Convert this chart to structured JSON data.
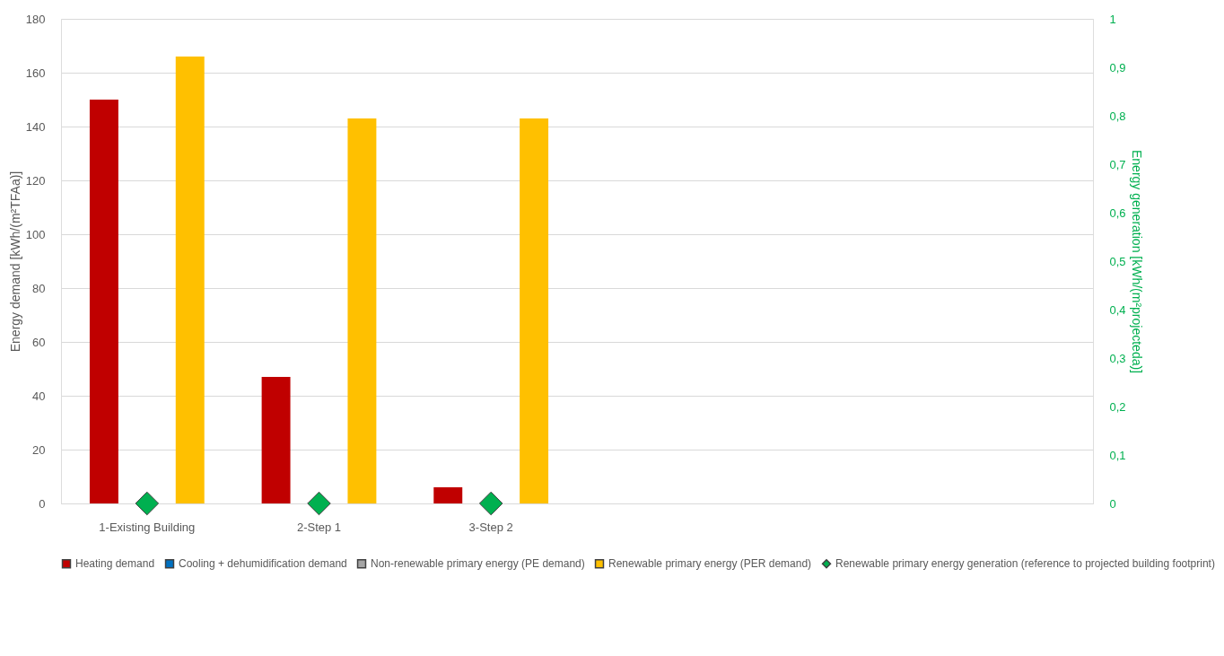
{
  "chart_data": {
    "type": "bar",
    "categories": [
      "1-Existing Building",
      "2-Step 1",
      "3-Step 2",
      null,
      null,
      null
    ],
    "ylabel": "Energy demand [kWh/(m²TFAa)]",
    "y2label": "Energy generation [kWh/(m²projecteda)]",
    "ylim": [
      0,
      180
    ],
    "yticks": [
      0,
      20,
      40,
      60,
      80,
      100,
      120,
      140,
      160,
      180
    ],
    "y2lim": [
      0,
      1
    ],
    "y2ticks": [
      0,
      {
        "value": 0.1,
        "label": "0,1"
      },
      {
        "value": 0.2,
        "label": "0,2"
      },
      {
        "value": 0.3,
        "label": "0,3"
      },
      {
        "value": 0.4,
        "label": "0,4"
      },
      {
        "value": 0.5,
        "label": "0,5"
      },
      {
        "value": 0.6,
        "label": "0,6"
      },
      {
        "value": 0.7,
        "label": "0,7"
      },
      {
        "value": 0.8,
        "label": "0,8"
      },
      {
        "value": 0.9,
        "label": "0,9"
      },
      1
    ],
    "grid": "y",
    "legend": "bottom",
    "series": [
      {
        "name": "Heating demand",
        "color": "#c00000",
        "values": [
          150,
          47,
          6,
          null,
          null,
          null
        ]
      },
      {
        "name": "Cooling + dehumidification demand",
        "color": "#0070c0",
        "values": [
          null,
          null,
          null,
          null,
          null,
          null
        ]
      },
      {
        "name": "Non-renewable primary energy (PE demand)",
        "color": "#a5a5a5",
        "values": [
          null,
          null,
          null,
          null,
          null,
          null
        ]
      },
      {
        "name": "Renewable primary energy (PER demand)",
        "color": "#ffc000",
        "values": [
          166,
          143,
          143,
          null,
          null,
          null
        ]
      },
      {
        "name": "Renewable primary energy generation (reference to projected building footprint)",
        "color": "#00b050",
        "type": "scatter",
        "axis": "y2",
        "marker": "diamond",
        "values": [
          0,
          0,
          0,
          null,
          null,
          null
        ]
      }
    ]
  }
}
